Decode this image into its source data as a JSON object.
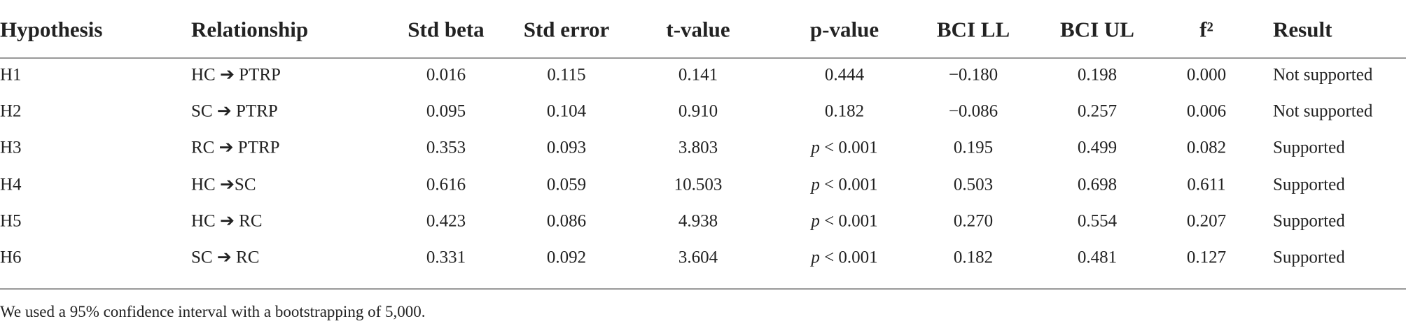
{
  "table": {
    "columns": [
      "Hypothesis",
      "Relationship",
      "Std beta",
      "Std error",
      "t-value",
      "p-value",
      "BCI LL",
      "BCI UL",
      "f²",
      "Result"
    ],
    "rows": [
      [
        "H1",
        "HC ➔ PTRP",
        "0.016",
        "0.115",
        "0.141",
        "0.444",
        "−0.180",
        "0.198",
        "0.000",
        "Not supported"
      ],
      [
        "H2",
        "SC ➔ PTRP",
        "0.095",
        "0.104",
        "0.910",
        "0.182",
        "−0.086",
        "0.257",
        "0.006",
        "Not supported"
      ],
      [
        "H3",
        "RC ➔ PTRP",
        "0.353",
        "0.093",
        "3.803",
        "p < 0.001",
        "0.195",
        "0.499",
        "0.082",
        "Supported"
      ],
      [
        "H4",
        "HC ➔SC",
        "0.616",
        "0.059",
        "10.503",
        "p < 0.001",
        "0.503",
        "0.698",
        "0.611",
        "Supported"
      ],
      [
        "H5",
        "HC ➔ RC",
        "0.423",
        "0.086",
        "4.938",
        "p < 0.001",
        "0.270",
        "0.554",
        "0.207",
        "Supported"
      ],
      [
        "H6",
        "SC ➔ RC",
        "0.331",
        "0.092",
        "3.604",
        "p < 0.001",
        "0.182",
        "0.481",
        "0.127",
        "Supported"
      ]
    ],
    "footnote": "We used a 95% confidence interval with a bootstrapping of 5,000."
  }
}
